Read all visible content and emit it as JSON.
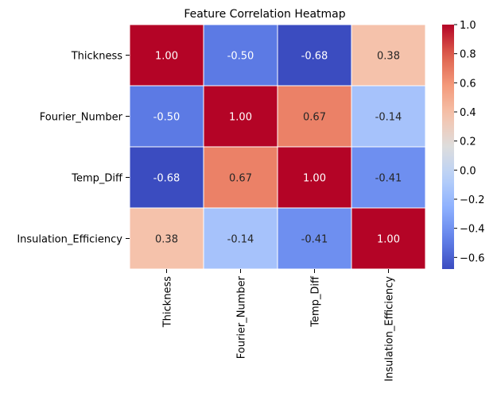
{
  "chart_data": {
    "type": "heatmap",
    "title": "Feature Correlation Heatmap",
    "xlabel": "",
    "ylabel": "",
    "rows": [
      "Thickness",
      "Fourier_Number",
      "Temp_Diff",
      "Insulation_Efficiency"
    ],
    "columns": [
      "Thickness",
      "Fourier_Number",
      "Temp_Diff",
      "Insulation_Efficiency"
    ],
    "values": [
      [
        1.0,
        -0.5,
        -0.68,
        0.38
      ],
      [
        -0.5,
        1.0,
        0.67,
        -0.14
      ],
      [
        -0.68,
        0.67,
        1.0,
        -0.41
      ],
      [
        0.38,
        -0.14,
        -0.41,
        1.0
      ]
    ],
    "value_format": "0.00",
    "colormap": "coolwarm",
    "colors": {
      "low": "#3b4cc0",
      "mid": "#dddddd",
      "high": "#b40426"
    },
    "color_range": [
      -0.68,
      1.0
    ],
    "colorbar_ticks": [
      1.0,
      0.8,
      0.6,
      0.4,
      0.2,
      0.0,
      -0.2,
      -0.4,
      -0.6
    ],
    "colorbar_tick_labels": [
      "1.0",
      "0.8",
      "0.6",
      "0.4",
      "0.2",
      "0.0",
      "−0.2",
      "−0.4",
      "−0.6"
    ],
    "grid": true,
    "legend": "colorbar-right"
  }
}
